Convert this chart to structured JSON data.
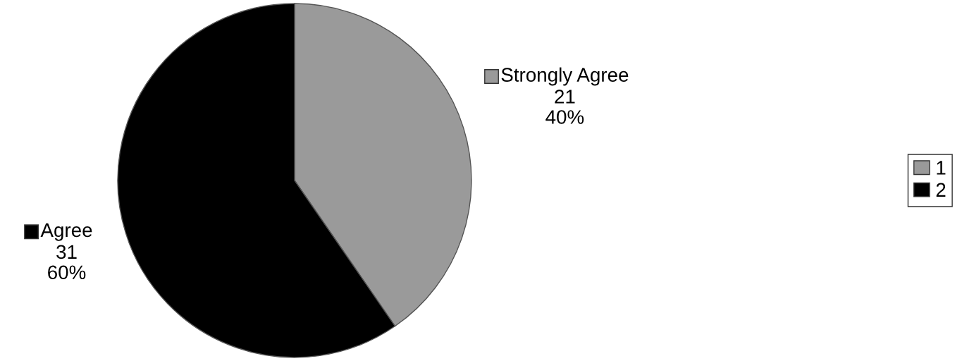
{
  "chart_data": {
    "type": "pie",
    "categories": [
      "Strongly Agree",
      "Agree"
    ],
    "values": [
      21,
      31
    ],
    "colors": [
      "#9a9a9a",
      "#000000"
    ],
    "value_labels": [
      "21\n40%",
      "31\n60%"
    ],
    "legend": "right",
    "annotations": [
      "1",
      "2"
    ]
  }
}
